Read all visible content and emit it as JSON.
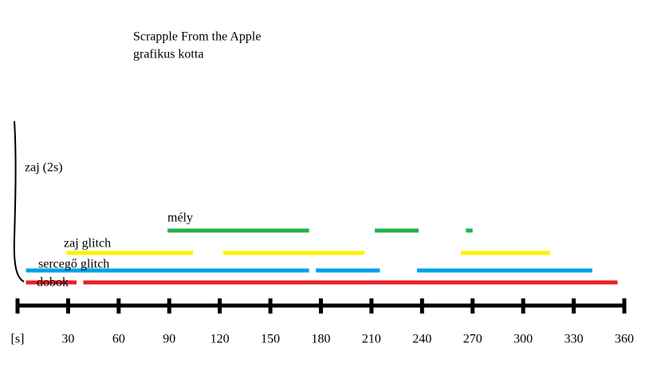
{
  "chart_data": {
    "type": "timeline",
    "title": "Scrapple From the Apple",
    "subtitle": "grafikus kotta",
    "annotation": "zaj (2s)",
    "xlim": [
      0,
      360
    ],
    "xticks": [
      {
        "value": 0,
        "label": "[s]"
      },
      30,
      60,
      90,
      120,
      150,
      180,
      210,
      240,
      270,
      300,
      330,
      360
    ],
    "series": [
      {
        "name": "mély",
        "color": "#22b14c",
        "segments": [
          [
            89,
            173
          ],
          [
            212,
            238
          ],
          [
            266,
            270
          ]
        ]
      },
      {
        "name": "zaj glitch",
        "color": "#fff200",
        "segments": [
          [
            29,
            104
          ],
          [
            122,
            206
          ],
          [
            263,
            316
          ]
        ]
      },
      {
        "name": "sercegő glitch",
        "color": "#00a2e8",
        "segments": [
          [
            5,
            173
          ],
          [
            177,
            215
          ],
          [
            237,
            341
          ]
        ]
      },
      {
        "name": "dobok",
        "color": "#ed1c24",
        "segments": [
          [
            5,
            35
          ],
          [
            39,
            356
          ]
        ]
      }
    ]
  }
}
